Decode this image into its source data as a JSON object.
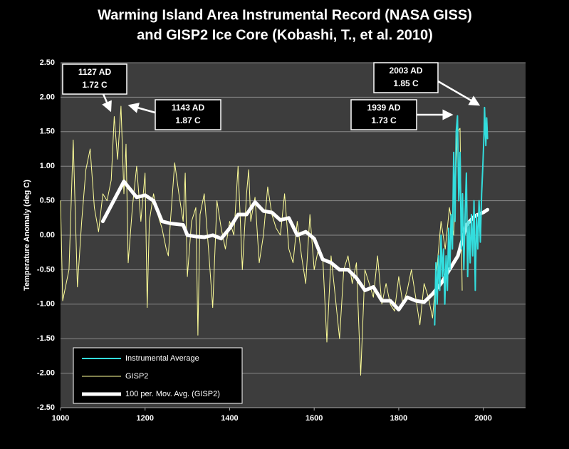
{
  "chart_data": {
    "type": "line",
    "title": [
      "Warming Island Area Instrumental Record (NASA GISS)",
      "and GISP2 Ice Core (Kobashi, T., et al. 2010)"
    ],
    "y_label": "Temperature Anomaly (deg C)",
    "xlim": [
      1000,
      2100
    ],
    "xticks": [
      1000,
      1200,
      1400,
      1600,
      1800,
      2000
    ],
    "ylim": [
      -2.5,
      2.5
    ],
    "yticks": [
      {
        "value": 2.5,
        "label": "2.50"
      },
      {
        "value": 2.0,
        "label": "2.00"
      },
      {
        "value": 1.5,
        "label": "1.50"
      },
      {
        "value": 1.0,
        "label": "1.00"
      },
      {
        "value": 0.5,
        "label": "0.50"
      },
      {
        "value": 0,
        "label": "0.00"
      },
      {
        "value": -0.5,
        "label": "-0.50"
      },
      {
        "value": -1.0,
        "label": "-1.00"
      },
      {
        "value": -1.5,
        "label": "-1.50"
      },
      {
        "value": -2.0,
        "label": "-2.00"
      },
      {
        "value": -2.5,
        "label": "-2.50"
      }
    ],
    "grid": true,
    "legend": "bottom-left",
    "series": [
      {
        "name": "Instrumental Average",
        "color": "#33dddd",
        "width": 2,
        "x": [
          1885,
          1888,
          1891,
          1894,
          1897,
          1900,
          1903,
          1906,
          1909,
          1912,
          1915,
          1918,
          1921,
          1924,
          1927,
          1930,
          1933,
          1936,
          1939,
          1942,
          1945,
          1948,
          1951,
          1954,
          1957,
          1960,
          1963,
          1966,
          1969,
          1972,
          1975,
          1978,
          1981,
          1984,
          1987,
          1990,
          1993,
          1996,
          1999,
          2002,
          2003,
          2006,
          2008,
          2010
        ],
        "values": [
          -1.3,
          -0.4,
          -1.0,
          -0.3,
          -0.8,
          0.0,
          -0.6,
          -0.2,
          -1.0,
          -0.3,
          -0.8,
          0.1,
          -0.5,
          0.3,
          -0.2,
          1.2,
          0.2,
          1.5,
          1.73,
          0.5,
          1.2,
          -0.2,
          0.6,
          -0.5,
          0.3,
          0.9,
          -0.6,
          0.2,
          -0.4,
          0.3,
          -0.3,
          0.5,
          -0.8,
          0.3,
          -0.2,
          0.5,
          -0.1,
          0.6,
          1.0,
          1.5,
          1.85,
          1.3,
          1.7,
          1.4
        ]
      },
      {
        "name": "GISP2",
        "color": "#ffff99",
        "width": 1,
        "x": [
          1000,
          1005,
          1020,
          1030,
          1040,
          1050,
          1060,
          1070,
          1080,
          1090,
          1100,
          1110,
          1120,
          1127,
          1135,
          1143,
          1150,
          1155,
          1160,
          1170,
          1180,
          1190,
          1200,
          1205,
          1210,
          1220,
          1230,
          1240,
          1250,
          1255,
          1260,
          1270,
          1280,
          1290,
          1295,
          1300,
          1310,
          1320,
          1325,
          1330,
          1340,
          1350,
          1360,
          1370,
          1380,
          1390,
          1400,
          1410,
          1420,
          1430,
          1440,
          1445,
          1450,
          1460,
          1470,
          1480,
          1490,
          1500,
          1510,
          1520,
          1530,
          1540,
          1550,
          1560,
          1570,
          1580,
          1590,
          1600,
          1610,
          1620,
          1630,
          1640,
          1650,
          1660,
          1670,
          1680,
          1690,
          1700,
          1710,
          1720,
          1730,
          1740,
          1750,
          1760,
          1770,
          1780,
          1790,
          1800,
          1810,
          1820,
          1830,
          1840,
          1850,
          1860,
          1870,
          1880,
          1890,
          1900,
          1910,
          1920,
          1930,
          1939,
          1945,
          1950
        ],
        "values": [
          0.5,
          -0.95,
          -0.5,
          1.38,
          -0.75,
          0.2,
          0.95,
          1.25,
          0.4,
          0.05,
          0.6,
          0.5,
          0.8,
          1.72,
          1.1,
          1.87,
          0.6,
          1.32,
          -0.4,
          0.4,
          1.0,
          0.2,
          0.9,
          -1.05,
          0.2,
          0.6,
          0.3,
          0.1,
          -0.2,
          -0.3,
          0.2,
          1.05,
          0.6,
          0.2,
          0.9,
          -0.6,
          0.2,
          0.4,
          -1.45,
          0.3,
          0.6,
          -0.2,
          -1.05,
          0.5,
          0.1,
          -0.2,
          0.2,
          0.0,
          1.0,
          -0.5,
          0.6,
          0.95,
          0.2,
          0.55,
          -0.4,
          0.0,
          0.7,
          0.3,
          0.1,
          0.0,
          0.6,
          -0.2,
          -0.4,
          0.2,
          -0.3,
          -0.7,
          0.3,
          -0.5,
          -0.2,
          -0.3,
          -1.55,
          -0.3,
          -0.9,
          -1.5,
          -0.5,
          -0.3,
          -0.7,
          -0.4,
          -2.03,
          -0.5,
          -0.7,
          -0.9,
          -0.3,
          -1.0,
          -0.7,
          -1.0,
          -1.1,
          -0.6,
          -1.0,
          -0.8,
          -0.5,
          -0.9,
          -1.3,
          -0.7,
          -0.9,
          -1.2,
          -0.5,
          0.2,
          -0.2,
          0.4,
          0.0,
          1.5,
          1.55,
          -0.8
        ]
      },
      {
        "name": "100 per. Mov. Avg. (GISP2)",
        "color": "#ffffff",
        "width": 5,
        "x": [
          1100,
          1130,
          1150,
          1160,
          1180,
          1200,
          1220,
          1240,
          1260,
          1290,
          1300,
          1320,
          1340,
          1360,
          1380,
          1400,
          1420,
          1440,
          1460,
          1480,
          1500,
          1520,
          1540,
          1560,
          1580,
          1600,
          1620,
          1640,
          1660,
          1680,
          1700,
          1720,
          1740,
          1760,
          1780,
          1800,
          1820,
          1840,
          1860,
          1880,
          1900,
          1920,
          1940,
          1960,
          1980,
          2000,
          2010
        ],
        "values": [
          0.2,
          0.55,
          0.78,
          0.7,
          0.55,
          0.58,
          0.5,
          0.2,
          0.17,
          0.15,
          0.0,
          -0.02,
          -0.03,
          0.0,
          -0.05,
          0.1,
          0.3,
          0.3,
          0.48,
          0.35,
          0.33,
          0.22,
          0.25,
          0.0,
          0.05,
          -0.05,
          -0.35,
          -0.4,
          -0.5,
          -0.5,
          -0.62,
          -0.8,
          -0.75,
          -0.95,
          -0.95,
          -1.08,
          -0.9,
          -0.95,
          -0.97,
          -0.85,
          -0.7,
          -0.5,
          -0.3,
          0.15,
          0.28,
          0.33,
          0.37
        ]
      }
    ],
    "annotations": [
      [
        "1127 AD",
        "1.72 C"
      ],
      [
        "1143 AD",
        "1.87 C"
      ],
      [
        "1939 AD",
        "1.73 C"
      ],
      [
        "2003 AD",
        "1.85 C"
      ]
    ]
  }
}
